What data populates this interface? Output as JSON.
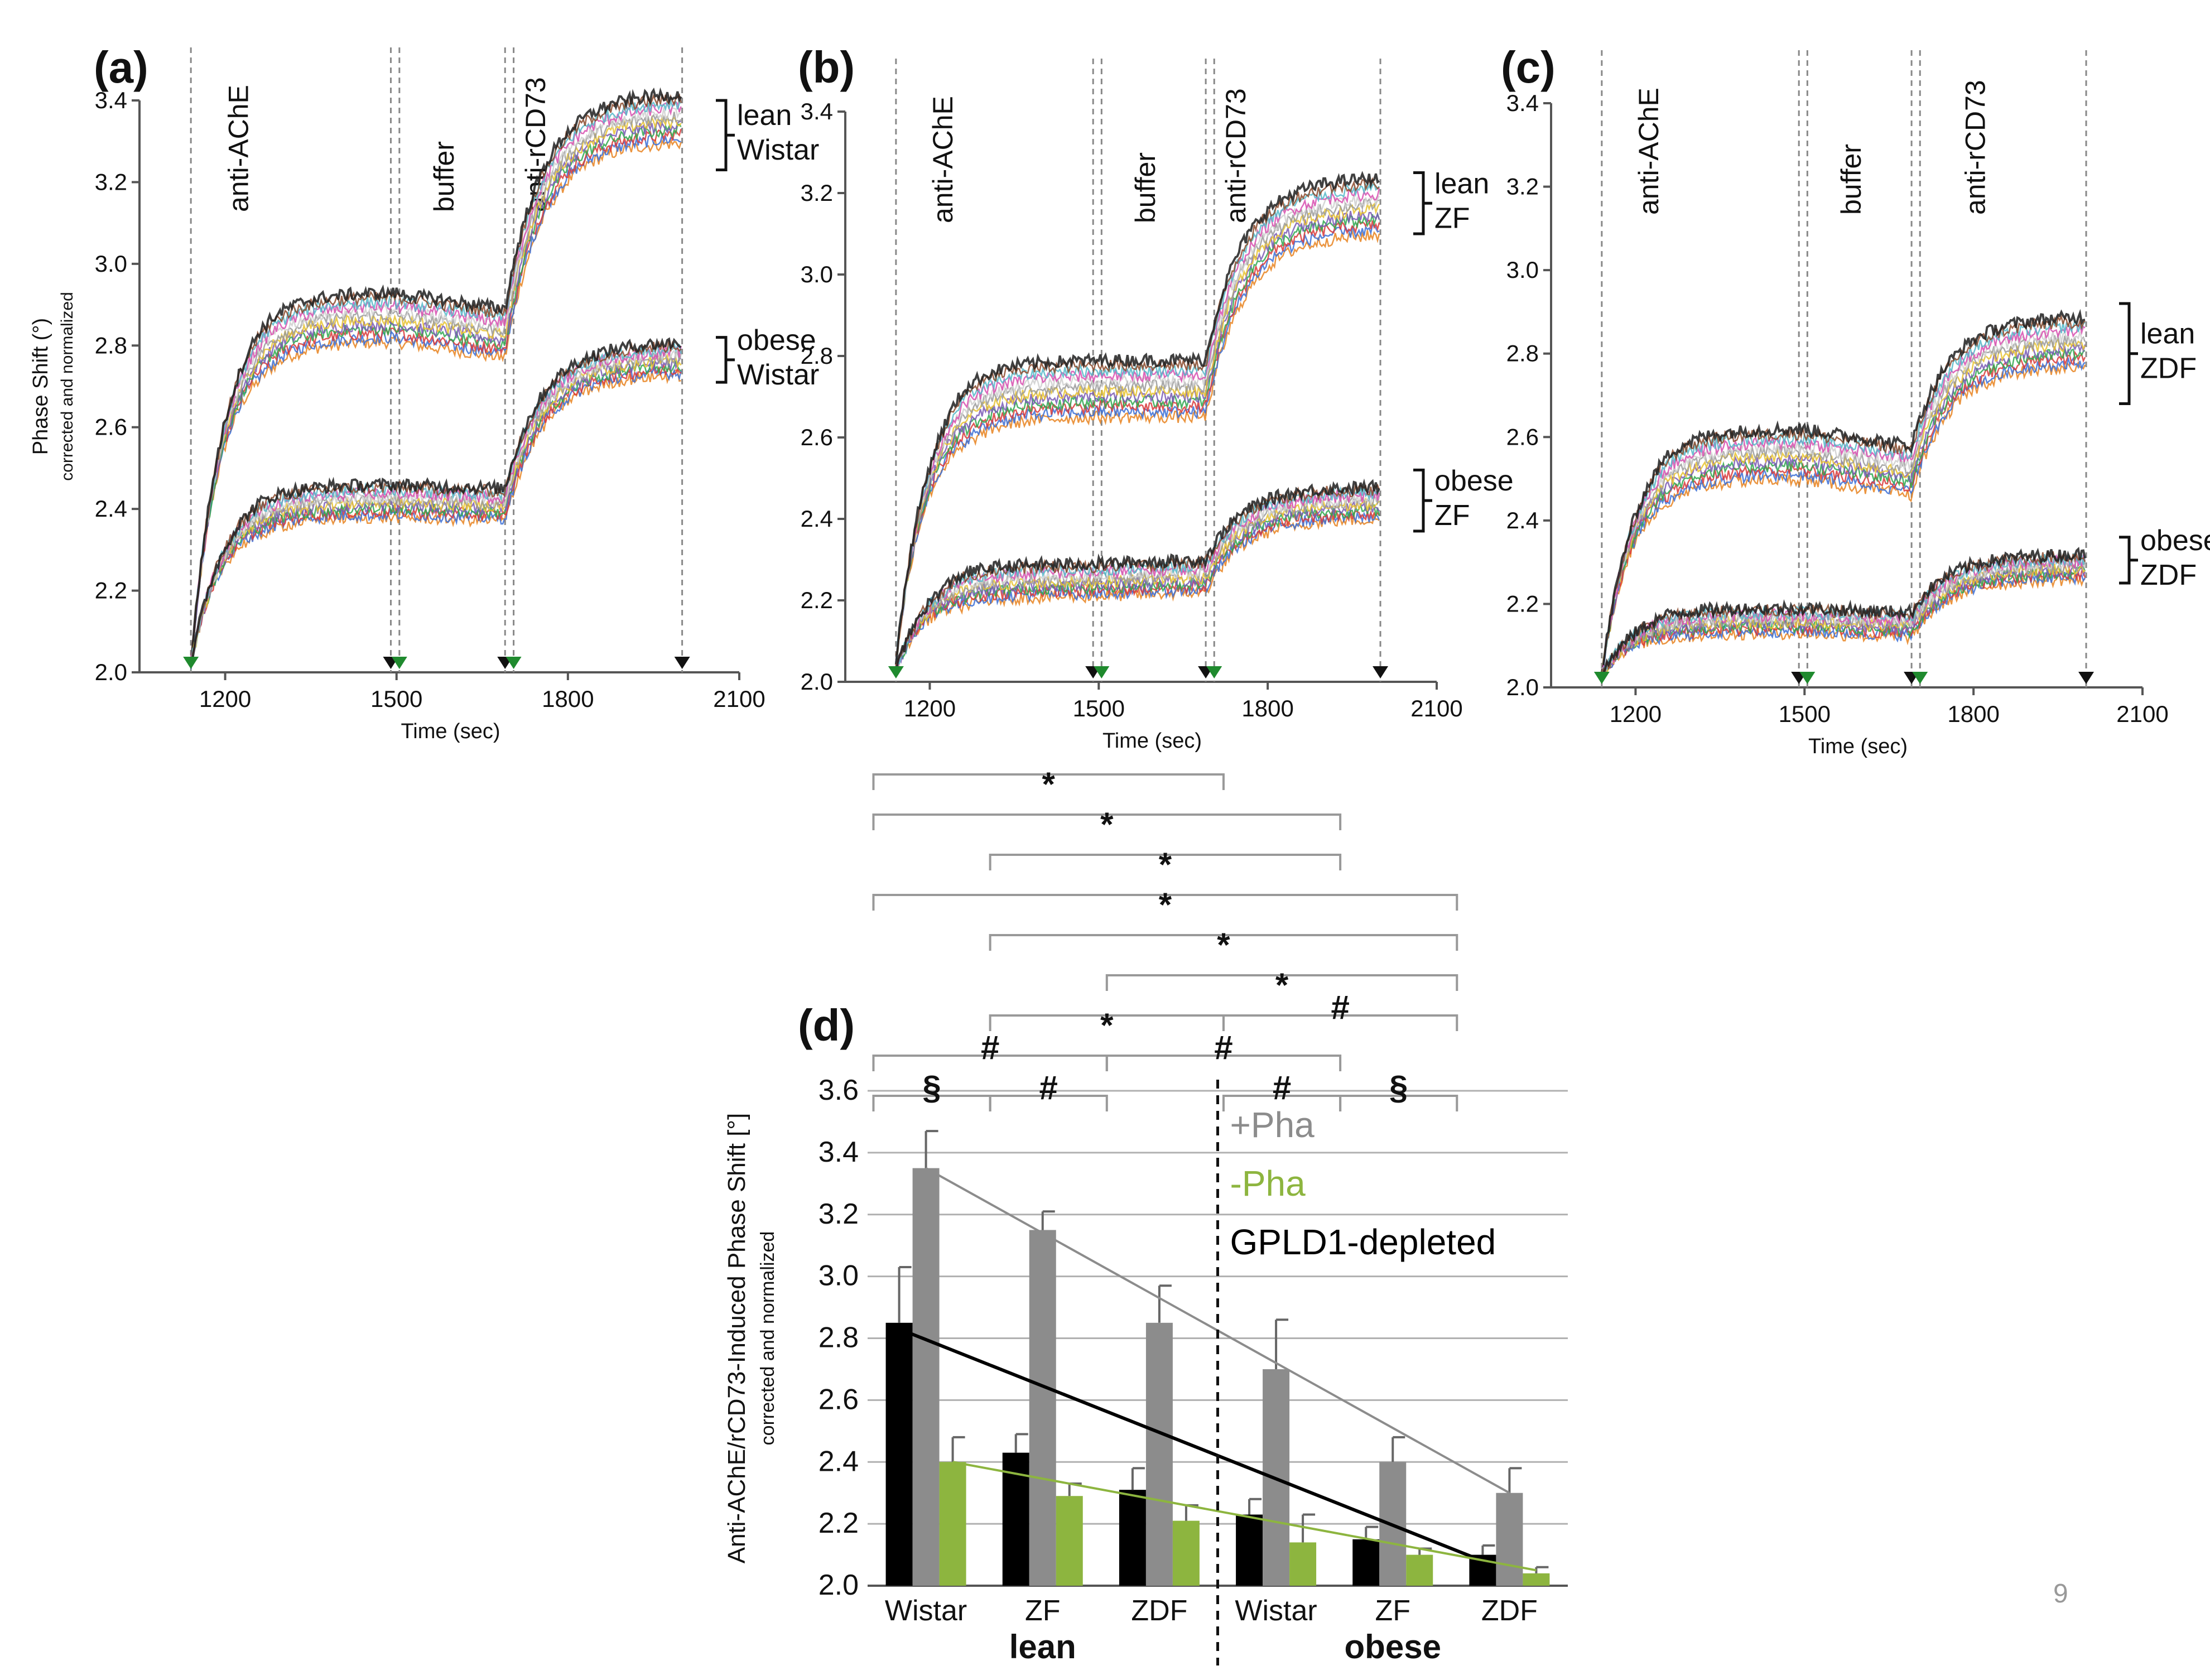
{
  "page_number": "9",
  "colors": {
    "pha_plus": "#8c8c8c",
    "pha_minus": "#8db53f",
    "gpld1": "#000000",
    "trace_palette": [
      "#e8821e",
      "#3b6fd6",
      "#d93a3a",
      "#2fa84f",
      "#7a5bb5",
      "#e8c330",
      "#9a9a9a",
      "#cfcfcf",
      "#d84fb0",
      "#56b8c9",
      "#8b4a2b",
      "#1e1e1e"
    ]
  },
  "chart_data": [
    {
      "id": "a",
      "type": "line",
      "panel_label": "(a)",
      "xlabel": "Time (sec)",
      "ylabel": "Phase Shift (°)",
      "ylabel2": "corrected and normalized",
      "xlim": [
        1050,
        2100
      ],
      "ylim": [
        2.0,
        3.4
      ],
      "xticks": [
        "1200",
        "1500",
        "1800",
        "2100"
      ],
      "xtick_values": [
        1200,
        1500,
        1800,
        2100
      ],
      "yticks": [
        "2.0",
        "2.2",
        "2.4",
        "2.6",
        "2.8",
        "3.0",
        "3.2",
        "3.4"
      ],
      "ytick_values": [
        2.0,
        2.2,
        2.4,
        2.6,
        2.8,
        3.0,
        3.2,
        3.4
      ],
      "phase_labels": [
        "anti-AChE",
        "buffer",
        "anti-rCD73"
      ],
      "phase_label_x": [
        1240,
        1600,
        1760
      ],
      "event_times": [
        1140,
        1490,
        1505,
        1690,
        1705,
        2000
      ],
      "markers": [
        {
          "t": 1140,
          "color": "green"
        },
        {
          "t": 1490,
          "color": "black"
        },
        {
          "t": 1505,
          "color": "green"
        },
        {
          "t": 1690,
          "color": "black"
        },
        {
          "t": 1705,
          "color": "green"
        },
        {
          "t": 2000,
          "color": "black"
        }
      ],
      "groups": [
        {
          "line1": "lean",
          "line2": "Wistar",
          "start": 2.02,
          "plateau1": 2.87,
          "plateau2": 2.83,
          "final": 3.36,
          "spread": 0.06,
          "bracket": [
            3.23,
            3.4
          ]
        },
        {
          "line1": "obese",
          "line2": "Wistar",
          "start": 2.02,
          "plateau1": 2.42,
          "plateau2": 2.41,
          "final": 2.77,
          "spread": 0.04,
          "bracket": [
            2.71,
            2.82
          ]
        }
      ]
    },
    {
      "id": "b",
      "type": "line",
      "panel_label": "(b)",
      "xlabel": "Time (sec)",
      "ylabel": "",
      "ylabel2": "",
      "xlim": [
        1050,
        2100
      ],
      "ylim": [
        2.0,
        3.4
      ],
      "xticks": [
        "1200",
        "1500",
        "1800",
        "2100"
      ],
      "xtick_values": [
        1200,
        1500,
        1800,
        2100
      ],
      "yticks": [
        "2.0",
        "2.2",
        "2.4",
        "2.6",
        "2.8",
        "3.0",
        "3.2",
        "3.4"
      ],
      "ytick_values": [
        2.0,
        2.2,
        2.4,
        2.6,
        2.8,
        3.0,
        3.2,
        3.4
      ],
      "phase_labels": [
        "anti-AChE",
        "buffer",
        "anti-rCD73"
      ],
      "phase_label_x": [
        1240,
        1600,
        1760
      ],
      "event_times": [
        1140,
        1490,
        1505,
        1690,
        1705,
        2000
      ],
      "markers": [
        {
          "t": 1140,
          "color": "green"
        },
        {
          "t": 1490,
          "color": "black"
        },
        {
          "t": 1505,
          "color": "green"
        },
        {
          "t": 1690,
          "color": "black"
        },
        {
          "t": 1705,
          "color": "green"
        },
        {
          "t": 2000,
          "color": "black"
        }
      ],
      "groups": [
        {
          "line1": "lean",
          "line2": "ZF",
          "start": 2.05,
          "plateau1": 2.72,
          "plateau2": 2.72,
          "final": 3.17,
          "spread": 0.07,
          "bracket": [
            3.1,
            3.25
          ]
        },
        {
          "line1": "obese",
          "line2": "ZF",
          "start": 2.03,
          "plateau1": 2.25,
          "plateau2": 2.26,
          "final": 2.44,
          "spread": 0.04,
          "bracket": [
            2.37,
            2.52
          ]
        }
      ]
    },
    {
      "id": "c",
      "type": "line",
      "panel_label": "(c)",
      "xlabel": "Time (sec)",
      "ylabel": "",
      "ylabel2": "",
      "xlim": [
        1050,
        2100
      ],
      "ylim": [
        2.0,
        3.4
      ],
      "xticks": [
        "1200",
        "1500",
        "1800",
        "2100"
      ],
      "xtick_values": [
        1200,
        1500,
        1800,
        2100
      ],
      "yticks": [
        "2.0",
        "2.2",
        "2.4",
        "2.6",
        "2.8",
        "3.0",
        "3.2",
        "3.4"
      ],
      "ytick_values": [
        2.0,
        2.2,
        2.4,
        2.6,
        2.8,
        3.0,
        3.2,
        3.4
      ],
      "phase_labels": [
        "anti-AChE",
        "buffer",
        "anti-rCD73"
      ],
      "phase_label_x": [
        1240,
        1600,
        1820
      ],
      "event_times": [
        1140,
        1490,
        1505,
        1690,
        1705,
        2000
      ],
      "markers": [
        {
          "t": 1140,
          "color": "green"
        },
        {
          "t": 1490,
          "color": "black"
        },
        {
          "t": 1505,
          "color": "green"
        },
        {
          "t": 1690,
          "color": "black"
        },
        {
          "t": 1705,
          "color": "green"
        },
        {
          "t": 2000,
          "color": "black"
        }
      ],
      "groups": [
        {
          "line1": "lean",
          "line2": "ZDF",
          "start": 2.03,
          "plateau1": 2.56,
          "plateau2": 2.52,
          "final": 2.83,
          "spread": 0.06,
          "bracket": [
            2.68,
            2.92
          ]
        },
        {
          "line1": "obese",
          "line2": "ZDF",
          "start": 2.03,
          "plateau1": 2.16,
          "plateau2": 2.15,
          "final": 2.29,
          "spread": 0.03,
          "bracket": [
            2.25,
            2.36
          ]
        }
      ]
    },
    {
      "id": "d",
      "type": "bar",
      "panel_label": "(d)",
      "ylabel": "Anti-AChE/rCD73-Induced Phase Shift [°]",
      "ylabel2": "corrected and normalized",
      "ylim": [
        2.0,
        3.6
      ],
      "yticks": [
        "2.0",
        "2.2",
        "2.4",
        "2.6",
        "2.8",
        "3.0",
        "3.2",
        "3.4",
        "3.6"
      ],
      "ytick_values": [
        2.0,
        2.2,
        2.4,
        2.6,
        2.8,
        3.0,
        3.2,
        3.4,
        3.6
      ],
      "categories": [
        "Wistar",
        "ZF",
        "ZDF",
        "Wistar",
        "ZF",
        "ZDF"
      ],
      "group_labels": [
        "lean",
        "obese"
      ],
      "legend": [
        {
          "label": "+Pha",
          "color": "#8c8c8c"
        },
        {
          "label": "-Pha",
          "color": "#8db53f"
        },
        {
          "label": "GPLD1-depleted",
          "color": "#000000"
        }
      ],
      "series": [
        {
          "name": "GPLD1-depleted",
          "color": "#000000",
          "values": [
            2.85,
            2.43,
            2.31,
            2.23,
            2.15,
            2.1
          ],
          "errors": [
            0.18,
            0.06,
            0.07,
            0.05,
            0.04,
            0.03
          ]
        },
        {
          "name": "+Pha",
          "color": "#8c8c8c",
          "values": [
            3.35,
            3.15,
            2.85,
            2.7,
            2.4,
            2.3
          ],
          "errors": [
            0.12,
            0.06,
            0.12,
            0.16,
            0.08,
            0.08
          ]
        },
        {
          "name": "-Pha",
          "color": "#8db53f",
          "values": [
            2.4,
            2.29,
            2.21,
            2.14,
            2.1,
            2.04
          ],
          "errors": [
            0.08,
            0.04,
            0.05,
            0.09,
            0.02,
            0.02
          ]
        }
      ],
      "trend_lines": [
        {
          "series": "+Pha",
          "from": [
            0,
            3.35
          ],
          "to": [
            5,
            2.3
          ]
        },
        {
          "series": "GPLD1-depleted",
          "from": [
            0,
            2.83
          ],
          "to": [
            5,
            2.08
          ]
        },
        {
          "series": "-Pha",
          "from": [
            0,
            2.4
          ],
          "to": [
            5,
            2.05
          ]
        }
      ],
      "significance": [
        {
          "from": 0,
          "to": 3,
          "symbol": "*",
          "level": 0
        },
        {
          "from": 0,
          "to": 4,
          "symbol": "*",
          "level": 1
        },
        {
          "from": 1,
          "to": 4,
          "symbol": "*",
          "level": 2
        },
        {
          "from": 0,
          "to": 5,
          "symbol": "*",
          "level": 3
        },
        {
          "from": 1,
          "to": 5,
          "symbol": "*",
          "level": 4
        },
        {
          "from": 2,
          "to": 5,
          "symbol": "*",
          "level": 5
        },
        {
          "from": 1,
          "to": 3,
          "symbol": "*",
          "level": 6
        },
        {
          "from": 3,
          "to": 5,
          "symbol": "#",
          "level": 6
        },
        {
          "from": 0,
          "to": 2,
          "symbol": "#",
          "level": 7
        },
        {
          "from": 2,
          "to": 4,
          "symbol": "#",
          "level": 7
        },
        {
          "from": 0,
          "to": 1,
          "symbol": "§",
          "level": 8
        },
        {
          "from": 1,
          "to": 2,
          "symbol": "#",
          "level": 8
        },
        {
          "from": 3,
          "to": 4,
          "symbol": "#",
          "level": 8
        },
        {
          "from": 4,
          "to": 5,
          "symbol": "§",
          "level": 8
        }
      ]
    }
  ]
}
